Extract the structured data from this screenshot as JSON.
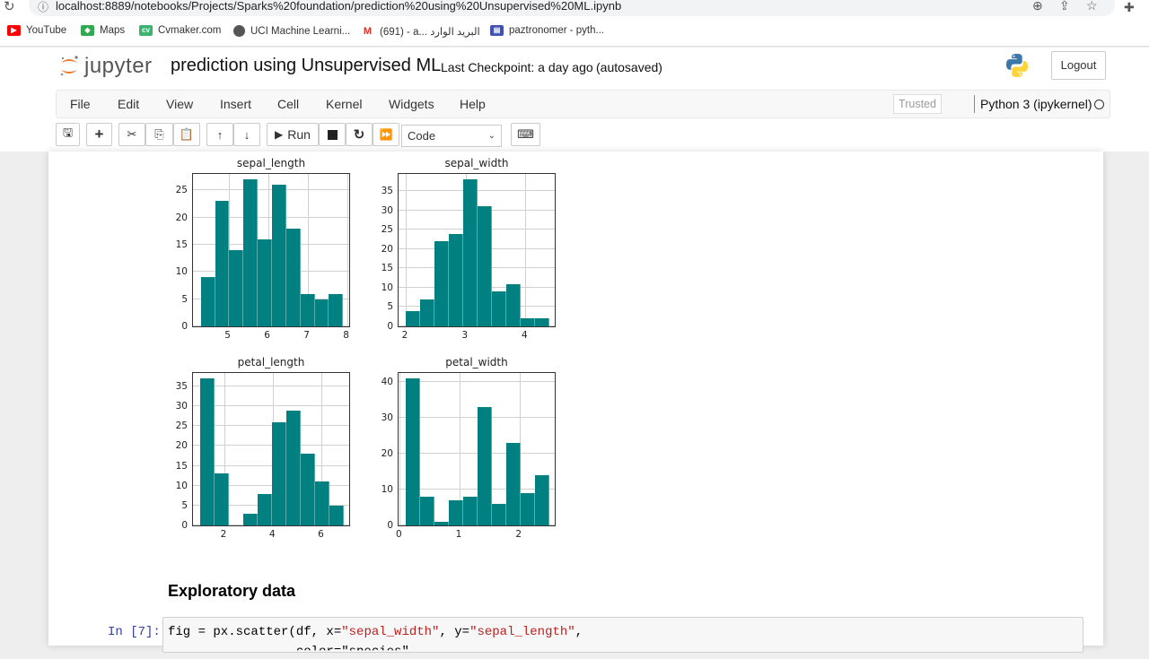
{
  "browser": {
    "url": "localhost:8889/notebooks/Projects/Sparks%20foundation/prediction%20using%20Unsupervised%20ML.ipynb",
    "bookmarks": [
      {
        "label": "YouTube",
        "icon": "youtube-icon",
        "color": "#ff0000"
      },
      {
        "label": "Maps",
        "icon": "maps-icon",
        "color": "#34a853"
      },
      {
        "label": "Cvmaker.com",
        "icon": "cvmaker-icon",
        "color": "#3cb371"
      },
      {
        "label": "UCI Machine Learni...",
        "icon": "globe-icon",
        "color": "#555555"
      },
      {
        "label": "(691) - a... البريد الوارد",
        "icon": "gmail-icon",
        "color": "#d93025"
      },
      {
        "label": "paztronomer - pyth...",
        "icon": "page-icon",
        "color": "#3f51b5"
      }
    ]
  },
  "header": {
    "logo_text": "jupyter",
    "notebook_title": "prediction using Unsupervised ML",
    "checkpoint": "Last Checkpoint: a day ago",
    "autosave": "(autosaved)",
    "logout_label": "Logout"
  },
  "menubar": {
    "items": [
      "File",
      "Edit",
      "View",
      "Insert",
      "Cell",
      "Kernel",
      "Widgets",
      "Help"
    ],
    "trusted_label": "Trusted",
    "kernel_name": "Python 3 (ipykernel)"
  },
  "toolbar": {
    "run_label": "Run",
    "cell_type": "Code"
  },
  "notebook": {
    "section_heading": "Exploratory data",
    "cell_prompt": "In [7]:",
    "code_line1_parts": [
      "fig = px.scatter(df, x=",
      "\"sepal_width\"",
      ", y=",
      "\"sepal_length\"",
      ","
    ],
    "code_line2_partial": "                 color=\"species\""
  },
  "colors": {
    "bar": "#008080",
    "accent_orange": "#f37626"
  },
  "chart_data": [
    {
      "type": "bar",
      "title": "sepal_length",
      "xlim": [
        4.1,
        8.1
      ],
      "ylim": [
        0,
        28.35
      ],
      "bin_edges": [
        4.3,
        4.66,
        5.02,
        5.38,
        5.74,
        6.1,
        6.46,
        6.82,
        7.18,
        7.54,
        7.9
      ],
      "values": [
        9,
        23,
        14,
        27,
        16,
        26,
        18,
        6,
        5,
        6
      ],
      "xticks": [
        5,
        6,
        7,
        8
      ],
      "yticks": [
        0,
        5,
        10,
        15,
        20,
        25
      ],
      "grid": true
    },
    {
      "type": "bar",
      "title": "sepal_width",
      "xlim": [
        1.88,
        4.52
      ],
      "ylim": [
        0,
        39.9
      ],
      "bin_edges": [
        2.0,
        2.24,
        2.48,
        2.72,
        2.96,
        3.2,
        3.44,
        3.68,
        3.92,
        4.16,
        4.4
      ],
      "values": [
        4,
        7,
        22,
        24,
        38,
        31,
        9,
        11,
        2,
        2
      ],
      "xticks": [
        2,
        3,
        4
      ],
      "yticks": [
        0,
        5,
        10,
        15,
        20,
        25,
        30,
        35
      ],
      "grid": true
    },
    {
      "type": "bar",
      "title": "petal_length",
      "xlim": [
        0.71,
        7.2
      ],
      "ylim": [
        0,
        38.85
      ],
      "bin_edges": [
        1.0,
        1.59,
        2.18,
        2.77,
        3.36,
        3.95,
        4.54,
        5.13,
        5.72,
        6.31,
        6.9
      ],
      "values": [
        37,
        13,
        0,
        3,
        8,
        26,
        29,
        18,
        11,
        5
      ],
      "xticks": [
        2,
        4,
        6
      ],
      "yticks": [
        0,
        5,
        10,
        15,
        20,
        25,
        30,
        35
      ],
      "grid": true
    },
    {
      "type": "bar",
      "title": "petal_width",
      "xlim": [
        -0.02,
        2.62
      ],
      "ylim": [
        0,
        43.05
      ],
      "bin_edges": [
        0.1,
        0.34,
        0.58,
        0.82,
        1.06,
        1.3,
        1.54,
        1.78,
        2.02,
        2.26,
        2.5
      ],
      "values": [
        41,
        8,
        1,
        7,
        8,
        33,
        6,
        23,
        9,
        14
      ],
      "xticks": [
        0,
        1,
        2
      ],
      "yticks": [
        0,
        10,
        20,
        30,
        40
      ],
      "grid": true
    }
  ]
}
